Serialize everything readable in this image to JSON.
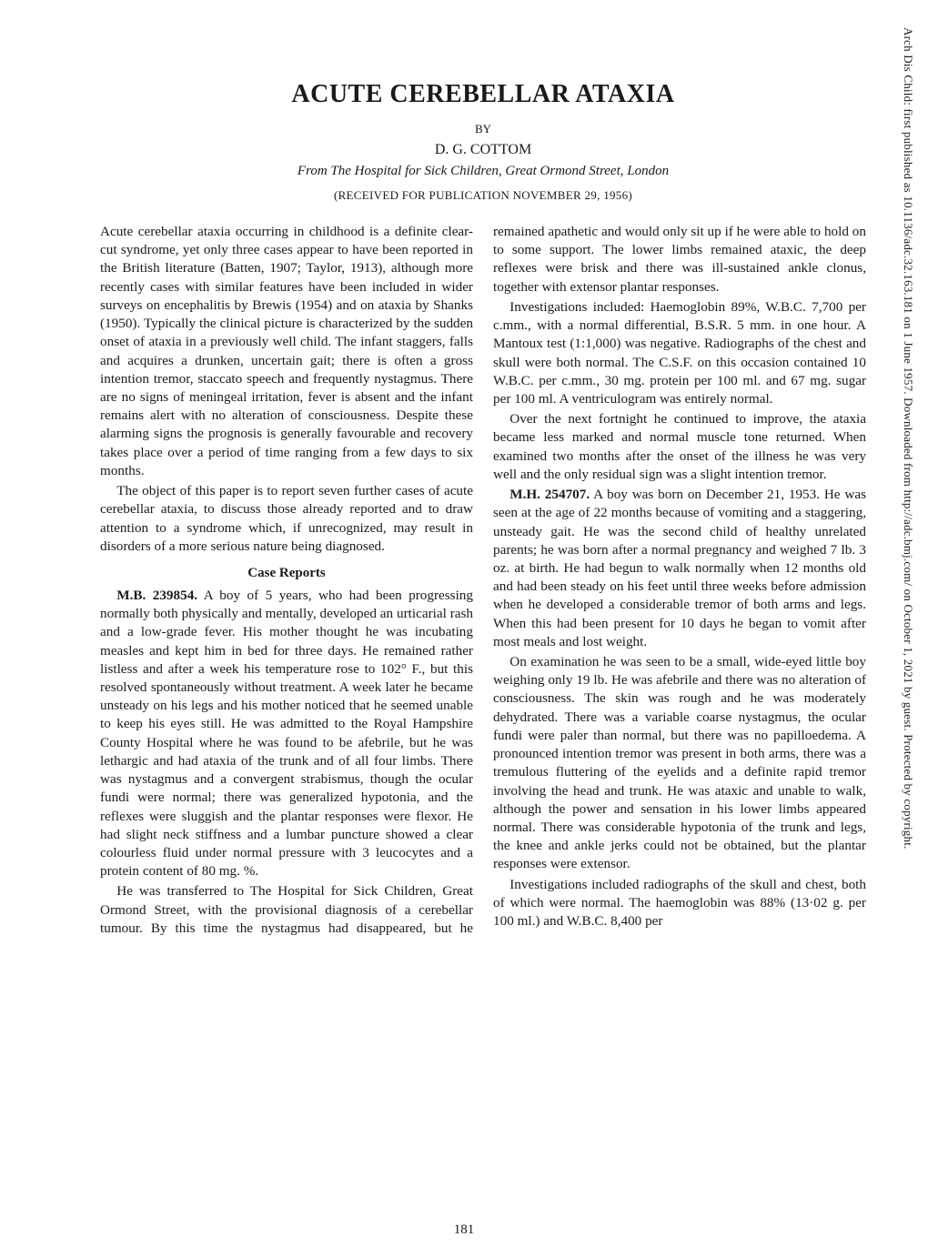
{
  "sidebar": {
    "text": "Arch Dis Child: first published as 10.1136/adc.32.163.181 on 1 June 1957. Downloaded from http://adc.bmj.com/ on October 1, 2021 by guest. Protected by copyright."
  },
  "title": "ACUTE CEREBELLAR ATAXIA",
  "by_label": "BY",
  "author": "D. G. COTTOM",
  "affiliation": "From The Hospital for Sick Children, Great Ormond Street, London",
  "received": "(RECEIVED FOR PUBLICATION NOVEMBER 29, 1956)",
  "intro": {
    "p1": "Acute cerebellar ataxia occurring in childhood is a definite clear-cut syndrome, yet only three cases appear to have been reported in the British literature (Batten, 1907; Taylor, 1913), although more recently cases with similar features have been included in wider surveys on encephalitis by Brewis (1954) and on ataxia by Shanks (1950). Typically the clinical picture is characterized by the sudden onset of ataxia in a previously well child. The infant staggers, falls and acquires a drunken, uncertain gait; there is often a gross intention tremor, staccato speech and frequently nystagmus. There are no signs of meningeal irritation, fever is absent and the infant remains alert with no alteration of consciousness. Despite these alarming signs the prognosis is generally favourable and recovery takes place over a period of time ranging from a few days to six months.",
    "p2": "The object of this paper is to report seven further cases of acute cerebellar ataxia, to discuss those already reported and to draw attention to a syndrome which, if unrecognized, may result in disorders of a more serious nature being diagnosed."
  },
  "case_reports_head": "Case Reports",
  "case1": {
    "lead": "M.B. 239854.",
    "p1": " A boy of 5 years, who had been progressing normally both physically and mentally, developed an urticarial rash and a low-grade fever. His mother thought he was incubating measles and kept him in bed for three days. He remained rather listless and after a week his temperature rose to 102° F., but this resolved spontaneously without treatment. A week later he became unsteady on his legs and his mother noticed that he seemed unable to keep his eyes still. He was admitted to the Royal Hampshire County Hospital where he was found to be afebrile, but he was lethargic and had ataxia of the trunk and of all four limbs. There was nystagmus and a convergent strabismus, though the ocular fundi were normal; there was generalized hypotonia, and the reflexes were sluggish and the plantar responses were flexor. He had slight neck stiffness and a lumbar puncture showed a clear colourless fluid under normal pressure with 3 leucocytes and a protein content of 80 mg. %.",
    "p2": "He was transferred to The Hospital for Sick Children, Great Ormond Street, with the provisional diagnosis of a cerebellar tumour. By this time the nystagmus had disappeared, but he remained apathetic and would only sit up if he were able to hold on to some support. The lower limbs remained ataxic, the deep reflexes were brisk and there was ill-sustained ankle clonus, together with extensor plantar responses.",
    "p3": "Investigations included: Haemoglobin 89%, W.B.C. 7,700 per c.mm., with a normal differential, B.S.R. 5 mm. in one hour. A Mantoux test (1:1,000) was negative. Radiographs of the chest and skull were both normal. The C.S.F. on this occasion contained 10 W.B.C. per c.mm., 30 mg. protein per 100 ml. and 67 mg. sugar per 100 ml. A ventriculogram was entirely normal.",
    "p4": "Over the next fortnight he continued to improve, the ataxia became less marked and normal muscle tone returned. When examined two months after the onset of the illness he was very well and the only residual sign was a slight intention tremor."
  },
  "case2": {
    "lead": "M.H. 254707.",
    "p1": " A boy was born on December 21, 1953. He was seen at the age of 22 months because of vomiting and a staggering, unsteady gait. He was the second child of healthy unrelated parents; he was born after a normal pregnancy and weighed 7 lb. 3 oz. at birth. He had begun to walk normally when 12 months old and had been steady on his feet until three weeks before admission when he developed a considerable tremor of both arms and legs. When this had been present for 10 days he began to vomit after most meals and lost weight.",
    "p2": "On examination he was seen to be a small, wide-eyed little boy weighing only 19 lb. He was afebrile and there was no alteration of consciousness. The skin was rough and he was moderately dehydrated. There was a variable coarse nystagmus, the ocular fundi were paler than normal, but there was no papilloedema. A pronounced intention tremor was present in both arms, there was a tremulous fluttering of the eyelids and a definite rapid tremor involving the head and trunk. He was ataxic and unable to walk, although the power and sensation in his lower limbs appeared normal. There was considerable hypotonia of the trunk and legs, the knee and ankle jerks could not be obtained, but the plantar responses were extensor.",
    "p3": "Investigations included radiographs of the skull and chest, both of which were normal. The haemoglobin was 88% (13·02 g. per 100 ml.) and W.B.C. 8,400 per"
  },
  "page_number": "181"
}
